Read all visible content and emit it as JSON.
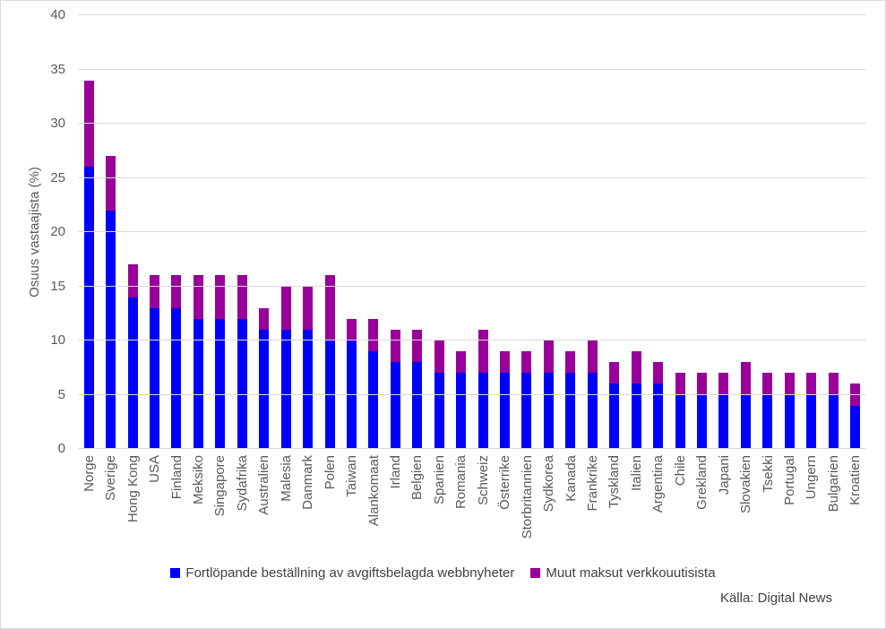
{
  "chart_data": {
    "type": "bar",
    "stacked": true,
    "title": "",
    "ylabel": "Osuus vastaajista (%)",
    "ylim": [
      0,
      40
    ],
    "ytick_step": 5,
    "grid": "horizontal",
    "legend_position": "bottom",
    "source": "Källa: Digital News",
    "categories": [
      "Norge",
      "Sverige",
      "Hong Kong",
      "USA",
      "Finland",
      "Meksiko",
      "Singapore",
      "Sydafrika",
      "Australien",
      "Malesia",
      "Danmark",
      "Polen",
      "Taiwan",
      "Alankomaat",
      "Irland",
      "Belgien",
      "Spanien",
      "Romania",
      "Schweiz",
      "Österrike",
      "Storbritannien",
      "Sydkorea",
      "Kanada",
      "Frankrike",
      "Tyskland",
      "Italien",
      "Argentina",
      "Chile",
      "Grekland",
      "Japani",
      "Slovakien",
      "Tsekki",
      "Portugal",
      "Ungern",
      "Bulgarien",
      "Kroatien"
    ],
    "series": [
      {
        "name": "Fortlöpande beställning av avgiftsbelagda webbnyheter",
        "color": "#0000FF",
        "values": [
          26,
          22,
          14,
          13,
          13,
          12,
          12,
          12,
          11,
          11,
          11,
          10,
          10,
          9,
          8,
          8,
          7,
          7,
          7,
          7,
          7,
          7,
          7,
          7,
          6,
          6,
          6,
          5,
          5,
          5,
          5,
          5,
          5,
          5,
          5,
          4
        ]
      },
      {
        "name": "Muut maksut verkkouutisista",
        "color": "#990099",
        "values": [
          8,
          5,
          3,
          3,
          3,
          4,
          4,
          4,
          2,
          4,
          4,
          6,
          2,
          3,
          3,
          3,
          3,
          2,
          4,
          2,
          2,
          3,
          2,
          3,
          2,
          3,
          2,
          2,
          2,
          2,
          3,
          2,
          2,
          2,
          2,
          2
        ]
      }
    ],
    "totals": [
      34,
      27,
      17,
      16,
      16,
      16,
      16,
      16,
      13,
      15,
      15,
      16,
      12,
      12,
      11,
      11,
      10,
      9,
      11,
      9,
      9,
      10,
      9,
      10,
      8,
      9,
      8,
      7,
      7,
      7,
      8,
      7,
      7,
      7,
      7,
      6
    ],
    "colors": {
      "gridline": "#D9D9D9",
      "axis_text": "#595959",
      "legend_text": "#404040",
      "border": "#D9D9D9",
      "background": "#FFFFFF"
    }
  }
}
